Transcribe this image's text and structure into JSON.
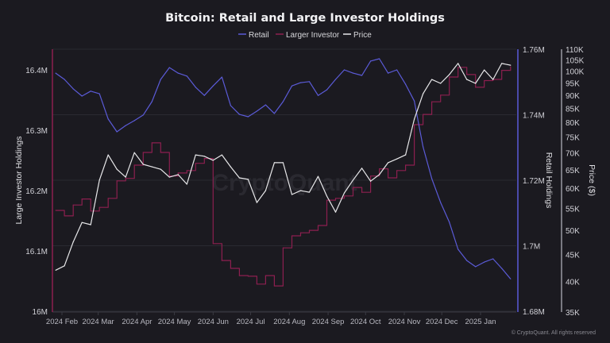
{
  "chart_data": {
    "type": "line",
    "title": "Bitcoin: Retail and Large Investor Holdings",
    "legend": {
      "placement": "top-center",
      "entries": [
        "Retail",
        "Larger Investor",
        "Price"
      ]
    },
    "watermark": "CryptoQuant",
    "copyright": "© CryptoQuant. All rights reserved",
    "grid": true,
    "x_axis": {
      "type": "date",
      "range": [
        "2024-01-24",
        "2025-01-30"
      ],
      "tick_labels": [
        "2024 Feb",
        "2024 Mar",
        "2024 Apr",
        "2024 May",
        "2024 Jun",
        "2024 Jul",
        "2024 Aug",
        "2024 Sep",
        "2024 Oct",
        "2024 Nov",
        "2024 Dec",
        "2025 Jan"
      ],
      "tick_dates": [
        "2024-02-01",
        "2024-03-01",
        "2024-04-01",
        "2024-05-01",
        "2024-06-01",
        "2024-07-01",
        "2024-08-01",
        "2024-09-01",
        "2024-10-01",
        "2024-11-01",
        "2024-12-01",
        "2025-01-01"
      ]
    },
    "y_axes": {
      "large": {
        "label": "Large Investor Holdings",
        "side": "left",
        "unit": "M",
        "range": [
          16.0,
          16.434
        ],
        "ticks": [
          16.0,
          16.1,
          16.2,
          16.3,
          16.4
        ],
        "tick_labels": [
          "16M",
          "16.1M",
          "16.2M",
          "16.3M",
          "16.4M"
        ],
        "color": "#8c1f4f"
      },
      "retail": {
        "label": "Retail Holdings",
        "side": "right",
        "unit": "M",
        "range": [
          1.68,
          1.76
        ],
        "ticks": [
          1.68,
          1.7,
          1.72,
          1.74,
          1.76
        ],
        "tick_labels": [
          "1.68M",
          "1.7M",
          "1.72M",
          "1.74M",
          "1.76M"
        ],
        "color": "#5b5bd8"
      },
      "price": {
        "label": "Price ($)",
        "side": "right",
        "scale": "log",
        "unit": "K",
        "range": [
          35,
          110
        ],
        "ticks": [
          35,
          40,
          45,
          50,
          55,
          60,
          65,
          70,
          75,
          80,
          85,
          90,
          95,
          100,
          105,
          110
        ],
        "tick_labels": [
          "35K",
          "40K",
          "45K",
          "50K",
          "55K",
          "60K",
          "65K",
          "70K",
          "75K",
          "80K",
          "85K",
          "90K",
          "95K",
          "100K",
          "105K",
          "110K"
        ],
        "color": "#e8e8ea"
      }
    },
    "x": [
      "2024-01-27",
      "2024-02-03",
      "2024-02-10",
      "2024-02-17",
      "2024-02-24",
      "2024-03-02",
      "2024-03-09",
      "2024-03-16",
      "2024-03-23",
      "2024-03-30",
      "2024-04-06",
      "2024-04-13",
      "2024-04-20",
      "2024-04-27",
      "2024-05-04",
      "2024-05-11",
      "2024-05-18",
      "2024-05-25",
      "2024-06-01",
      "2024-06-08",
      "2024-06-15",
      "2024-06-22",
      "2024-06-29",
      "2024-07-06",
      "2024-07-13",
      "2024-07-20",
      "2024-07-27",
      "2024-08-03",
      "2024-08-10",
      "2024-08-17",
      "2024-08-24",
      "2024-08-31",
      "2024-09-07",
      "2024-09-14",
      "2024-09-21",
      "2024-09-28",
      "2024-10-05",
      "2024-10-12",
      "2024-10-19",
      "2024-10-26",
      "2024-11-02",
      "2024-11-09",
      "2024-11-16",
      "2024-11-23",
      "2024-11-30",
      "2024-12-07",
      "2024-12-14",
      "2024-12-21",
      "2024-12-28",
      "2025-01-04",
      "2025-01-11",
      "2025-01-18",
      "2025-01-25"
    ],
    "series": [
      {
        "name": "Retail",
        "axis": "retail",
        "color": "#5b5bd8",
        "values": [
          1.7527,
          1.7508,
          1.7479,
          1.7457,
          1.7472,
          1.7464,
          1.7387,
          1.7348,
          1.7367,
          1.7382,
          1.7399,
          1.744,
          1.7508,
          1.7544,
          1.7527,
          1.7518,
          1.7484,
          1.7459,
          1.7488,
          1.7515,
          1.7428,
          1.7401,
          1.7394,
          1.7411,
          1.743,
          1.7404,
          1.744,
          1.7488,
          1.7498,
          1.7501,
          1.7459,
          1.7476,
          1.7508,
          1.7537,
          1.7527,
          1.752,
          1.7564,
          1.7571,
          1.7527,
          1.7537,
          1.7493,
          1.7442,
          1.7302,
          1.7205,
          1.7132,
          1.7072,
          1.6989,
          1.6955,
          1.6936,
          1.695,
          1.696,
          1.6931,
          1.6899
        ]
      },
      {
        "name": "Larger Investor",
        "axis": "large",
        "color": "#8c1f4f",
        "values": [
          16.167,
          16.158,
          16.176,
          16.186,
          16.166,
          16.172,
          16.187,
          16.216,
          16.22,
          16.242,
          16.263,
          16.279,
          16.263,
          16.224,
          16.229,
          16.233,
          16.245,
          16.253,
          16.112,
          16.084,
          16.071,
          16.059,
          16.058,
          16.045,
          16.059,
          16.042,
          16.105,
          16.125,
          16.13,
          16.134,
          16.142,
          16.184,
          16.187,
          16.191,
          16.205,
          16.197,
          16.224,
          16.236,
          16.221,
          16.233,
          16.242,
          16.309,
          16.326,
          16.347,
          16.358,
          16.388,
          16.404,
          16.392,
          16.371,
          16.382,
          16.384,
          16.399,
          16.405
        ]
      },
      {
        "name": "Price",
        "axis": "price",
        "color": "#e8e8ea",
        "values": [
          42.0,
          42.8,
          47.5,
          51.7,
          51.2,
          62.2,
          69.4,
          65.2,
          63.0,
          70.1,
          66.6,
          65.9,
          65.2,
          63.0,
          63.7,
          61.1,
          69.4,
          69.0,
          67.8,
          69.4,
          65.9,
          62.8,
          62.4,
          56.4,
          59.4,
          67.1,
          67.1,
          58.4,
          59.4,
          59.0,
          63.2,
          58.0,
          54.1,
          58.8,
          62.2,
          65.5,
          61.9,
          63.7,
          67.1,
          68.2,
          69.4,
          81.1,
          90.6,
          96.4,
          94.8,
          98.5,
          103.4,
          96.4,
          94.8,
          100.5,
          96.4,
          103.4,
          102.6
        ]
      }
    ]
  }
}
